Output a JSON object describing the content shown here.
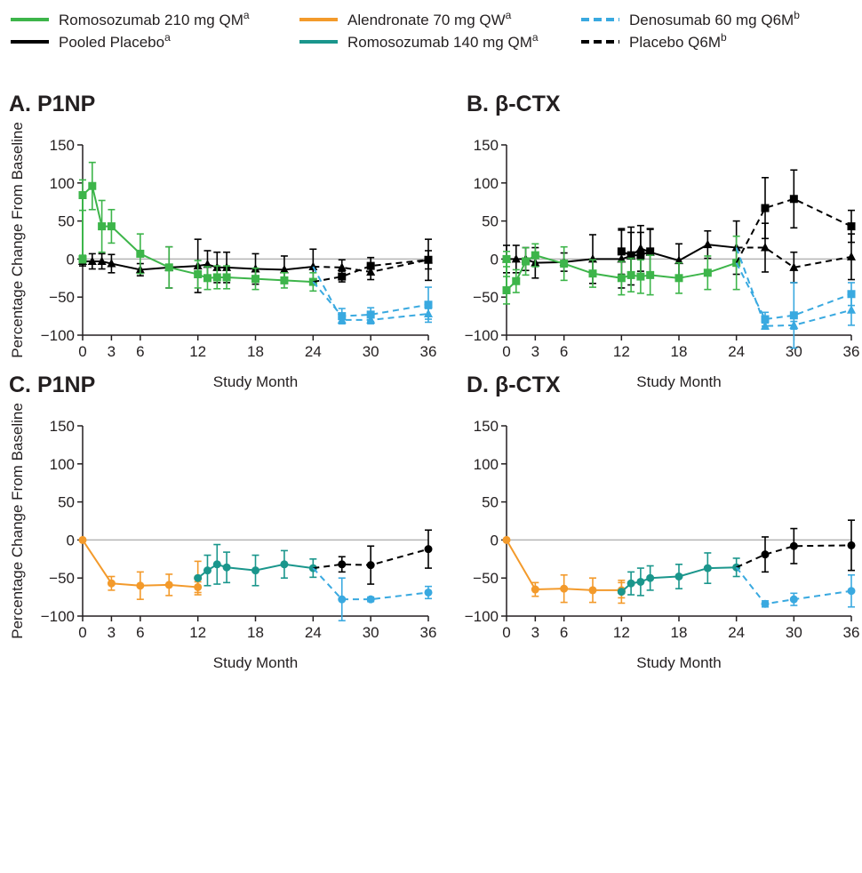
{
  "legend": [
    {
      "label": "Romosozumab 210 mg QM",
      "sup": "a",
      "color": "#3db54a",
      "dashed": false
    },
    {
      "label": "Alendronate 70 mg QW",
      "sup": "a",
      "color": "#f39a2b",
      "dashed": false
    },
    {
      "label": "Denosumab 60 mg Q6M",
      "sup": "b",
      "color": "#39a9e0",
      "dashed": true
    },
    {
      "label": "Pooled Placebo",
      "sup": "a",
      "color": "#000000",
      "dashed": false
    },
    {
      "label": "Romosozumab 140 mg QM",
      "sup": "a",
      "color": "#1a968c",
      "dashed": false
    },
    {
      "label": "Placebo Q6M",
      "sup": "b",
      "color": "#000000",
      "dashed": true
    }
  ],
  "axes": {
    "xlabel": "Study Month",
    "ylabel": "Percentage Change From Baseline",
    "xticks": [
      0,
      3,
      6,
      12,
      18,
      24,
      30,
      36
    ],
    "yticks": [
      150,
      100,
      50,
      0,
      -50,
      -100
    ],
    "xlim": [
      0,
      36
    ],
    "ylim": [
      -100,
      150
    ]
  },
  "chart_data": [
    {
      "type": "line",
      "title": "A. P1NP",
      "xlabel": "Study Month",
      "ylabel": "Percentage Change From Baseline",
      "xlim": [
        0,
        36
      ],
      "ylim": [
        -100,
        150
      ],
      "grid": false,
      "series": [
        {
          "name": "Pooled Placebo",
          "color": "#000000",
          "dashed": false,
          "marker": "triangle",
          "x": [
            0,
            1,
            2,
            3,
            6,
            9,
            12,
            13,
            14,
            15,
            18,
            21,
            24
          ],
          "y": [
            -3,
            -3,
            -3,
            -6,
            -14,
            -11,
            -9,
            -7,
            -11,
            -11,
            -13,
            -14,
            -10
          ],
          "err": [
            6,
            10,
            10,
            12,
            8,
            27,
            35,
            18,
            20,
            20,
            20,
            18,
            23
          ]
        },
        {
          "name": "Romosozumab 210 mg QM",
          "color": "#3db54a",
          "dashed": false,
          "marker": "square",
          "x": [
            0,
            0,
            1,
            2,
            3,
            6,
            9,
            12,
            13,
            14,
            15,
            18,
            21,
            24
          ],
          "y": [
            0,
            84,
            96,
            43,
            43,
            7,
            -11,
            -20,
            -25,
            -24,
            -24,
            -26,
            -28,
            -30
          ],
          "err": [
            5,
            20,
            31,
            34,
            22,
            26,
            27,
            18,
            15,
            15,
            15,
            14,
            10,
            12
          ]
        },
        {
          "name": "Placebo Q6M",
          "color": "#000000",
          "dashed": true,
          "marker": "triangle",
          "x": [
            24,
            27,
            30,
            36
          ],
          "y": [
            -10,
            -11,
            -17,
            -1
          ],
          "err": [
            0,
            10,
            10,
            12
          ]
        },
        {
          "name": "Placebo Q6M",
          "color": "#000000",
          "dashed": true,
          "marker": "square",
          "x": [
            24,
            27,
            30,
            36
          ],
          "y": [
            -30,
            -23,
            -9,
            -1
          ],
          "err": [
            0,
            7,
            11,
            27
          ]
        },
        {
          "name": "Denosumab 60 mg Q6M",
          "color": "#39a9e0",
          "dashed": true,
          "marker": "triangle",
          "x": [
            24,
            27,
            30,
            36
          ],
          "y": [
            -10,
            -80,
            -80,
            -72
          ],
          "err": [
            0,
            5,
            5,
            7
          ]
        },
        {
          "name": "Denosumab 60 mg Q6M",
          "color": "#39a9e0",
          "dashed": true,
          "marker": "square",
          "x": [
            24,
            27,
            30,
            36
          ],
          "y": [
            -30,
            -75,
            -73,
            -60
          ],
          "err": [
            0,
            10,
            9,
            23
          ]
        }
      ]
    },
    {
      "type": "line",
      "title": "B. β-CTX",
      "xlabel": "Study Month",
      "ylabel": "",
      "xlim": [
        0,
        36
      ],
      "ylim": [
        -100,
        150
      ],
      "grid": false,
      "series": [
        {
          "name": "Pooled Placebo",
          "color": "#000000",
          "dashed": false,
          "marker": "triangle",
          "x": [
            0,
            1,
            2,
            3,
            6,
            9,
            12,
            13,
            14,
            15,
            18,
            21,
            24
          ],
          "y": [
            0,
            0,
            0,
            -5,
            -4,
            0,
            0,
            4,
            14,
            9,
            -2,
            19,
            15
          ],
          "err": [
            18,
            18,
            15,
            20,
            12,
            32,
            38,
            38,
            30,
            30,
            22,
            18,
            35
          ]
        },
        {
          "name": "Pooled Placebo",
          "color": "#000000",
          "dashed": false,
          "marker": "square",
          "x": [
            12,
            13,
            14,
            15
          ],
          "y": [
            10,
            5,
            5,
            10
          ],
          "err": [
            30,
            30,
            30,
            30
          ]
        },
        {
          "name": "Romosozumab 210 mg QM",
          "color": "#3db54a",
          "dashed": false,
          "marker": "square",
          "x": [
            0,
            0,
            1,
            2,
            3,
            6,
            9,
            12,
            13,
            14,
            15,
            18,
            21,
            24
          ],
          "y": [
            0,
            -41,
            -29,
            -3,
            5,
            -6,
            -19,
            -25,
            -21,
            -23,
            -21,
            -25,
            -18,
            -5
          ],
          "err": [
            10,
            18,
            15,
            18,
            15,
            22,
            18,
            22,
            22,
            22,
            26,
            20,
            22,
            35
          ]
        },
        {
          "name": "Placebo Q6M",
          "color": "#000000",
          "dashed": true,
          "marker": "triangle",
          "x": [
            24,
            27,
            30,
            36
          ],
          "y": [
            15,
            15,
            -11,
            3
          ],
          "err": [
            0,
            32,
            20,
            30
          ]
        },
        {
          "name": "Placebo Q6M",
          "color": "#000000",
          "dashed": true,
          "marker": "square",
          "x": [
            24,
            27,
            30,
            36
          ],
          "y": [
            -5,
            67,
            79,
            43
          ],
          "err": [
            0,
            40,
            38,
            21
          ]
        },
        {
          "name": "Denosumab 60 mg Q6M",
          "color": "#39a9e0",
          "dashed": true,
          "marker": "triangle",
          "x": [
            24,
            27,
            30,
            36
          ],
          "y": [
            15,
            -88,
            -87,
            -67
          ],
          "err": [
            0,
            4,
            5,
            20
          ]
        },
        {
          "name": "Denosumab 60 mg Q6M",
          "color": "#39a9e0",
          "dashed": true,
          "marker": "square",
          "x": [
            24,
            27,
            30,
            36
          ],
          "y": [
            -5,
            -79,
            -74,
            -46
          ],
          "err": [
            0,
            9,
            43,
            15
          ]
        }
      ]
    },
    {
      "type": "line",
      "title": "C. P1NP",
      "xlabel": "Study Month",
      "ylabel": "Percentage Change From Baseline",
      "xlim": [
        0,
        36
      ],
      "ylim": [
        -100,
        150
      ],
      "grid": false,
      "series": [
        {
          "name": "Alendronate 70 mg QW",
          "color": "#f39a2b",
          "dashed": false,
          "marker": "circle",
          "x": [
            0,
            3,
            6,
            9,
            12,
            12
          ],
          "y": [
            0,
            -57,
            -60,
            -59,
            -62,
            -50
          ],
          "err": [
            0,
            9,
            18,
            14,
            7,
            22
          ]
        },
        {
          "name": "Romosozumab 140 mg QM",
          "color": "#1a968c",
          "dashed": false,
          "marker": "circle",
          "x": [
            12,
            13,
            14,
            15,
            18,
            21,
            24
          ],
          "y": [
            -50,
            -40,
            -32,
            -36,
            -40,
            -32,
            -37
          ],
          "err": [
            0,
            20,
            26,
            20,
            20,
            18,
            12
          ]
        },
        {
          "name": "Placebo Q6M",
          "color": "#000000",
          "dashed": true,
          "marker": "circle",
          "x": [
            24,
            27,
            30,
            36
          ],
          "y": [
            -37,
            -32,
            -33,
            -12
          ],
          "err": [
            0,
            10,
            25,
            25
          ]
        },
        {
          "name": "Denosumab 60 mg Q6M",
          "color": "#39a9e0",
          "dashed": true,
          "marker": "circle",
          "x": [
            24,
            27,
            30,
            36
          ],
          "y": [
            -37,
            -78,
            -78,
            -69
          ],
          "err": [
            0,
            28,
            3,
            8
          ]
        }
      ]
    },
    {
      "type": "line",
      "title": "D. β-CTX",
      "xlabel": "Study Month",
      "ylabel": "",
      "xlim": [
        0,
        36
      ],
      "ylim": [
        -100,
        150
      ],
      "grid": false,
      "series": [
        {
          "name": "Alendronate 70 mg QW",
          "color": "#f39a2b",
          "dashed": false,
          "marker": "circle",
          "x": [
            0,
            3,
            6,
            9,
            12,
            12
          ],
          "y": [
            0,
            -65,
            -64,
            -66,
            -66,
            -68
          ],
          "err": [
            0,
            9,
            18,
            16,
            10,
            15
          ]
        },
        {
          "name": "Romosozumab 140 mg QM",
          "color": "#1a968c",
          "dashed": false,
          "marker": "circle",
          "x": [
            12,
            13,
            14,
            15,
            18,
            21,
            24
          ],
          "y": [
            -68,
            -57,
            -55,
            -50,
            -48,
            -37,
            -36
          ],
          "err": [
            0,
            15,
            18,
            16,
            16,
            20,
            12
          ]
        },
        {
          "name": "Placebo Q6M",
          "color": "#000000",
          "dashed": true,
          "marker": "circle",
          "x": [
            24,
            27,
            30,
            36
          ],
          "y": [
            -36,
            -19,
            -8,
            -7
          ],
          "err": [
            0,
            23,
            23,
            33
          ]
        },
        {
          "name": "Denosumab 60 mg Q6M",
          "color": "#39a9e0",
          "dashed": true,
          "marker": "circle",
          "x": [
            24,
            27,
            30,
            36
          ],
          "y": [
            -36,
            -84,
            -78,
            -67
          ],
          "err": [
            0,
            4,
            8,
            21
          ]
        }
      ]
    }
  ]
}
